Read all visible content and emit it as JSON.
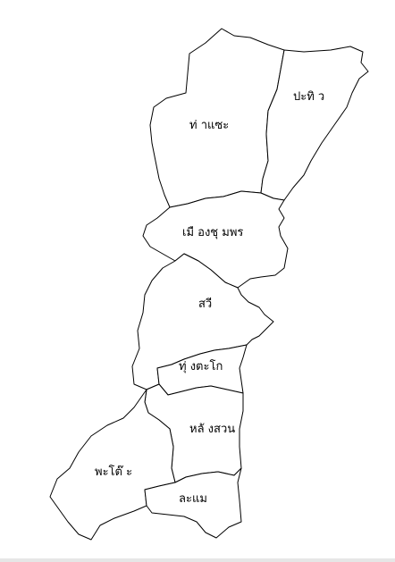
{
  "map": {
    "line_color": "#000000",
    "fill_color": "#ffffff",
    "districts": [
      {
        "id": "tha-sae",
        "label": "ท่ าแซะ"
      },
      {
        "id": "pathio",
        "label": "ปะทิ ว"
      },
      {
        "id": "mueang-chumphon",
        "label": "เมื องชุ มพร"
      },
      {
        "id": "sawi",
        "label": "สวี"
      },
      {
        "id": "thung-tako",
        "label": "ทุ่ งตะโก"
      },
      {
        "id": "lang-suan",
        "label": "หลั งสวน"
      },
      {
        "id": "phato",
        "label": "พะโต๊ ะ"
      },
      {
        "id": "lamae",
        "label": "ละแม"
      }
    ]
  }
}
